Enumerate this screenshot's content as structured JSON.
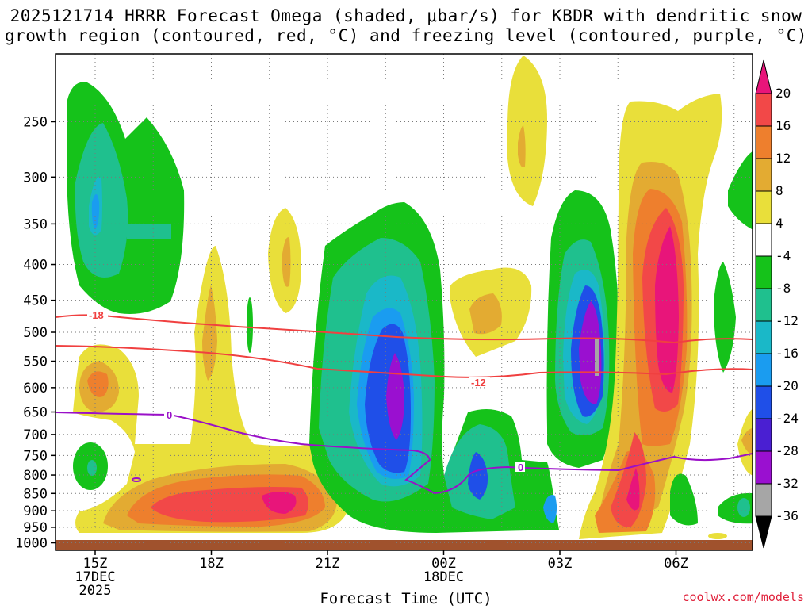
{
  "title_line1": "2025121714 HRRR Forecast Omega (shaded, μbar/s) for KBDR with dendritic snow",
  "title_line2": "growth region (contoured, red, °C) and freezing level (contoured, purple, °C)",
  "x_axis_label": "Forecast Time (UTC)",
  "credit": "coolwx.com/models",
  "chart_data": {
    "type": "area",
    "y_ticks": [
      "250",
      "300",
      "350",
      "400",
      "450",
      "500",
      "550",
      "600",
      "650",
      "700",
      "750",
      "800",
      "850",
      "900",
      "950",
      "1000"
    ],
    "x_ticks": [
      {
        "lines": [
          "15Z",
          "17DEC",
          "2025"
        ]
      },
      {
        "lines": [
          "18Z"
        ]
      },
      {
        "lines": [
          "21Z"
        ]
      },
      {
        "lines": [
          "00Z",
          "18DEC"
        ]
      },
      {
        "lines": [
          "03Z"
        ]
      },
      {
        "lines": [
          "06Z"
        ]
      }
    ],
    "colorbar": {
      "tick_labels": [
        "20",
        "16",
        "12",
        "8",
        "4",
        "-4",
        "-8",
        "-12",
        "-16",
        "-20",
        "-24",
        "-28",
        "-32",
        "-36"
      ],
      "colors": [
        "#e8157a",
        "#f24848",
        "#ee7f2d",
        "#e3ab32",
        "#e9df3a",
        "#ffffff",
        "#15c21a",
        "#1fc08e",
        "#1ab8c8",
        "#1a9cf0",
        "#1f4fe8",
        "#4a1fd2",
        "#9a10d0",
        "#a6a6a6",
        "#000000"
      ]
    },
    "contours": [
      {
        "label": "-18",
        "color": "#f04040"
      },
      {
        "label": "-12",
        "color": "#f04040"
      },
      {
        "label": "0",
        "color": "#9a10c8"
      }
    ]
  }
}
